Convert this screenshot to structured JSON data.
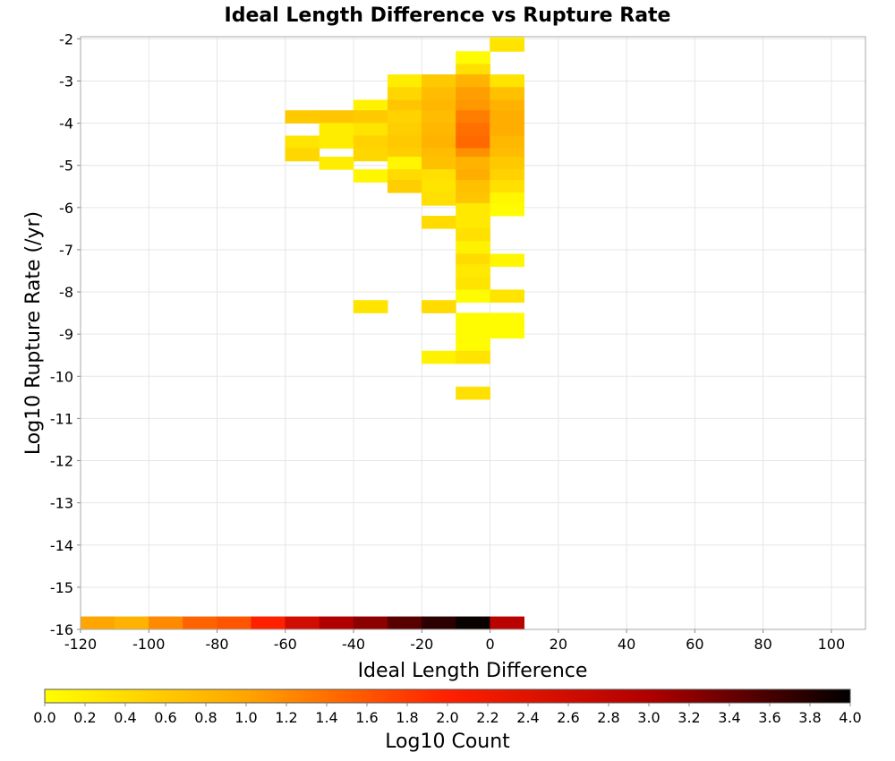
{
  "chart_data": {
    "type": "heatmap",
    "title": "Ideal Length Difference vs Rupture Rate",
    "xlabel": "Ideal Length Difference",
    "ylabel": "Log10 Rupture Rate (/yr)",
    "xlim": [
      -120,
      110
    ],
    "ylim": [
      -16,
      -1.95
    ],
    "x_ticks": [
      "-120",
      "-100",
      "-80",
      "-60",
      "-40",
      "-20",
      "0",
      "20",
      "40",
      "60",
      "80",
      "100"
    ],
    "y_ticks": [
      "-2",
      "-3",
      "-4",
      "-5",
      "-6",
      "-7",
      "-8",
      "-9",
      "-10",
      "-11",
      "-12",
      "-13",
      "-14",
      "-15",
      "-16"
    ],
    "grid": true,
    "cell_width": 10,
    "cell_height": 0.3,
    "colorbar": {
      "label": "Log10 Count",
      "range": [
        0,
        4
      ],
      "ticks": [
        "0.0",
        "0.2",
        "0.4",
        "0.6",
        "0.8",
        "1.0",
        "1.2",
        "1.4",
        "1.6",
        "1.8",
        "2.0",
        "2.2",
        "2.4",
        "2.6",
        "2.8",
        "3.0",
        "3.2",
        "3.4",
        "3.6",
        "3.8",
        "4.0"
      ],
      "colors": [
        "#ffff00",
        "#ffa500",
        "#ff2000",
        "#b00000",
        "#000000"
      ]
    },
    "cells": [
      {
        "x": 0,
        "y": -2.0,
        "value": 0.05
      },
      {
        "x": 0,
        "y": -2.3,
        "value": 0.3
      },
      {
        "x": -10,
        "y": -2.6,
        "value": 0.05
      },
      {
        "x": -10,
        "y": -2.9,
        "value": 0.35
      },
      {
        "x": -30,
        "y": -3.15,
        "value": 0.2
      },
      {
        "x": -20,
        "y": -3.15,
        "value": 0.6
      },
      {
        "x": -10,
        "y": -3.15,
        "value": 0.85
      },
      {
        "x": 0,
        "y": -3.15,
        "value": 0.3
      },
      {
        "x": -30,
        "y": -3.45,
        "value": 0.45
      },
      {
        "x": -20,
        "y": -3.45,
        "value": 0.75
      },
      {
        "x": -10,
        "y": -3.45,
        "value": 1.05
      },
      {
        "x": 0,
        "y": -3.45,
        "value": 0.7
      },
      {
        "x": -40,
        "y": -3.75,
        "value": 0.15
      },
      {
        "x": -30,
        "y": -3.75,
        "value": 0.65
      },
      {
        "x": -20,
        "y": -3.75,
        "value": 0.8
      },
      {
        "x": -10,
        "y": -3.75,
        "value": 1.1
      },
      {
        "x": 0,
        "y": -3.75,
        "value": 0.85
      },
      {
        "x": -60,
        "y": -4.0,
        "value": 0.6
      },
      {
        "x": -50,
        "y": -4.0,
        "value": 0.65
      },
      {
        "x": -40,
        "y": -4.0,
        "value": 0.6
      },
      {
        "x": -30,
        "y": -4.0,
        "value": 0.5
      },
      {
        "x": -20,
        "y": -4.0,
        "value": 0.75
      },
      {
        "x": -10,
        "y": -4.0,
        "value": 1.3
      },
      {
        "x": 0,
        "y": -4.0,
        "value": 0.9
      },
      {
        "x": -50,
        "y": -4.3,
        "value": 0.2
      },
      {
        "x": -40,
        "y": -4.3,
        "value": 0.3
      },
      {
        "x": -30,
        "y": -4.3,
        "value": 0.55
      },
      {
        "x": -20,
        "y": -4.3,
        "value": 0.8
      },
      {
        "x": -10,
        "y": -4.3,
        "value": 1.4
      },
      {
        "x": 0,
        "y": -4.3,
        "value": 0.9
      },
      {
        "x": -60,
        "y": -4.6,
        "value": 0.3
      },
      {
        "x": -50,
        "y": -4.6,
        "value": 0.2
      },
      {
        "x": -40,
        "y": -4.6,
        "value": 0.5
      },
      {
        "x": -30,
        "y": -4.6,
        "value": 0.6
      },
      {
        "x": -20,
        "y": -4.6,
        "value": 0.85
      },
      {
        "x": -10,
        "y": -4.6,
        "value": 1.45
      },
      {
        "x": 0,
        "y": -4.6,
        "value": 0.8
      },
      {
        "x": -60,
        "y": -4.9,
        "value": 0.45
      },
      {
        "x": -40,
        "y": -4.9,
        "value": 0.45
      },
      {
        "x": -30,
        "y": -4.9,
        "value": 0.55
      },
      {
        "x": -20,
        "y": -4.9,
        "value": 0.75
      },
      {
        "x": -10,
        "y": -4.9,
        "value": 1.15
      },
      {
        "x": 0,
        "y": -4.9,
        "value": 0.75
      },
      {
        "x": -50,
        "y": -5.1,
        "value": 0.2
      },
      {
        "x": -30,
        "y": -5.1,
        "value": 0.1
      },
      {
        "x": -20,
        "y": -5.1,
        "value": 0.7
      },
      {
        "x": -10,
        "y": -5.1,
        "value": 0.85
      },
      {
        "x": 0,
        "y": -5.1,
        "value": 0.6
      },
      {
        "x": -40,
        "y": -5.4,
        "value": 0.1
      },
      {
        "x": -30,
        "y": -5.4,
        "value": 0.4
      },
      {
        "x": -20,
        "y": -5.4,
        "value": 0.35
      },
      {
        "x": -10,
        "y": -5.4,
        "value": 0.9
      },
      {
        "x": 0,
        "y": -5.4,
        "value": 0.5
      },
      {
        "x": -30,
        "y": -5.65,
        "value": 0.55
      },
      {
        "x": -20,
        "y": -5.65,
        "value": 0.3
      },
      {
        "x": -10,
        "y": -5.65,
        "value": 0.7
      },
      {
        "x": 0,
        "y": -5.65,
        "value": 0.35
      },
      {
        "x": -20,
        "y": -5.95,
        "value": 0.35
      },
      {
        "x": -10,
        "y": -5.95,
        "value": 0.65
      },
      {
        "x": 0,
        "y": -5.95,
        "value": 0.1
      },
      {
        "x": -10,
        "y": -6.2,
        "value": 0.25
      },
      {
        "x": 0,
        "y": -6.2,
        "value": 0.05
      },
      {
        "x": -20,
        "y": -6.5,
        "value": 0.4
      },
      {
        "x": -10,
        "y": -6.5,
        "value": 0.25
      },
      {
        "x": -10,
        "y": -6.8,
        "value": 0.35
      },
      {
        "x": -10,
        "y": -7.1,
        "value": 0.15
      },
      {
        "x": -10,
        "y": -7.4,
        "value": 0.4
      },
      {
        "x": 0,
        "y": -7.4,
        "value": 0.1
      },
      {
        "x": -10,
        "y": -7.65,
        "value": 0.25
      },
      {
        "x": -10,
        "y": -7.95,
        "value": 0.3
      },
      {
        "x": -10,
        "y": -8.25,
        "value": 0.05
      },
      {
        "x": 0,
        "y": -8.25,
        "value": 0.3
      },
      {
        "x": -40,
        "y": -8.5,
        "value": 0.3
      },
      {
        "x": -20,
        "y": -8.5,
        "value": 0.4
      },
      {
        "x": -10,
        "y": -8.8,
        "value": 0.05
      },
      {
        "x": 0,
        "y": -8.8,
        "value": 0.05
      },
      {
        "x": -10,
        "y": -9.1,
        "value": 0.05
      },
      {
        "x": 0,
        "y": -9.1,
        "value": 0.05
      },
      {
        "x": -10,
        "y": -9.4,
        "value": 0.05
      },
      {
        "x": -20,
        "y": -9.7,
        "value": 0.15
      },
      {
        "x": -10,
        "y": -9.7,
        "value": 0.3
      },
      {
        "x": -10,
        "y": -10.55,
        "value": 0.35
      },
      {
        "x": -120,
        "y": -16.0,
        "value": 1.0
      },
      {
        "x": -110,
        "y": -16.0,
        "value": 0.85
      },
      {
        "x": -100,
        "y": -16.0,
        "value": 1.2
      },
      {
        "x": -90,
        "y": -16.0,
        "value": 1.5
      },
      {
        "x": -80,
        "y": -16.0,
        "value": 1.6
      },
      {
        "x": -70,
        "y": -16.0,
        "value": 2.0
      },
      {
        "x": -60,
        "y": -16.0,
        "value": 2.6
      },
      {
        "x": -50,
        "y": -16.0,
        "value": 3.0
      },
      {
        "x": -40,
        "y": -16.0,
        "value": 3.2
      },
      {
        "x": -30,
        "y": -16.0,
        "value": 3.5
      },
      {
        "x": -20,
        "y": -16.0,
        "value": 3.75
      },
      {
        "x": -10,
        "y": -16.0,
        "value": 3.95
      },
      {
        "x": 0,
        "y": -16.0,
        "value": 2.9
      }
    ]
  }
}
